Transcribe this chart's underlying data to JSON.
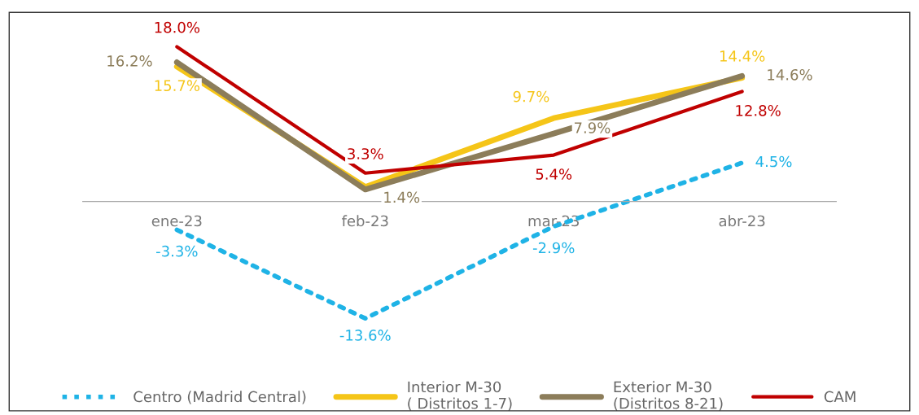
{
  "chart_data": {
    "type": "line",
    "categories": [
      "ene-23",
      "feb-23",
      "mar-23",
      "abr-23"
    ],
    "legend": "bottom",
    "grid": false,
    "tick_labels": "x",
    "series": [
      {
        "name": "Centro (Madrid Central)",
        "color": "#1fb3e6",
        "line_style": "dotted",
        "values": [
          -3.3,
          -13.6,
          -2.9,
          4.5
        ],
        "value_labels": [
          "-3.3%",
          "-13.6%",
          "-2.9%",
          "4.5%"
        ]
      },
      {
        "name": "Interior M-30\n( Distritos 1-7)",
        "color": "#f5c518",
        "line_style": "solid",
        "values": [
          15.7,
          1.7,
          9.7,
          14.4
        ],
        "value_labels": [
          "15.7%",
          null,
          "9.7%",
          "14.4%"
        ]
      },
      {
        "name": "Exterior M-30\n(Distritos 8-21)",
        "color": "#8c7d5a",
        "line_style": "solid",
        "values": [
          16.2,
          1.4,
          7.9,
          14.6
        ],
        "value_labels": [
          "16.2%",
          "1.4%",
          "7.9%",
          "14.6%"
        ]
      },
      {
        "name": "CAM",
        "color": "#c00000",
        "line_style": "solid",
        "values": [
          18.0,
          3.3,
          5.4,
          12.8
        ],
        "value_labels": [
          "18.0%",
          "3.3%",
          "5.4%",
          "12.8%"
        ]
      }
    ]
  }
}
